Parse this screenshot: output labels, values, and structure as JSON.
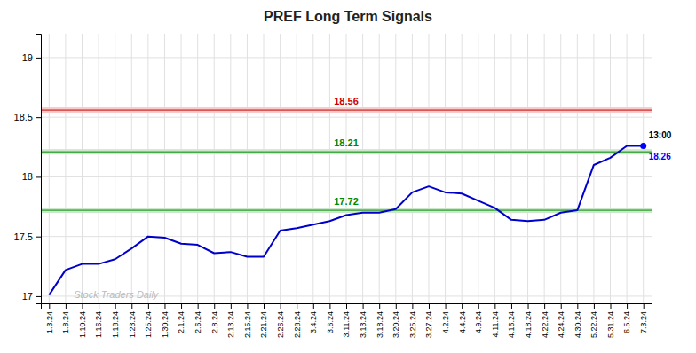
{
  "chart_data": {
    "type": "line",
    "title": "PREF Long Term Signals",
    "categories": [
      "1.3.24",
      "1.8.24",
      "1.10.24",
      "1.16.24",
      "1.18.24",
      "1.23.24",
      "1.25.24",
      "1.30.24",
      "2.1.24",
      "2.6.24",
      "2.8.24",
      "2.13.24",
      "2.15.24",
      "2.21.24",
      "2.26.24",
      "2.28.24",
      "3.4.24",
      "3.6.24",
      "3.11.24",
      "3.13.24",
      "3.18.24",
      "3.20.24",
      "3.25.24",
      "3.27.24",
      "4.2.24",
      "4.4.24",
      "4.9.24",
      "4.11.24",
      "4.16.24",
      "4.18.24",
      "4.22.24",
      "4.24.24",
      "4.30.24",
      "5.22.24",
      "5.31.24",
      "6.5.24",
      "7.3.24"
    ],
    "values": [
      17.01,
      17.22,
      17.27,
      17.27,
      17.31,
      17.4,
      17.5,
      17.49,
      17.44,
      17.43,
      17.36,
      17.37,
      17.33,
      17.33,
      17.55,
      17.57,
      17.6,
      17.63,
      17.68,
      17.7,
      17.7,
      17.73,
      17.87,
      17.92,
      17.87,
      17.86,
      17.8,
      17.74,
      17.64,
      17.63,
      17.64,
      17.7,
      17.72,
      18.1,
      18.16,
      18.26,
      18.26
    ],
    "color": "#0000cc",
    "ylim": [
      16.94,
      19.2
    ],
    "yticks": [
      17,
      17.5,
      18,
      18.5,
      19
    ],
    "grid": true,
    "reference_lines": [
      {
        "y": 18.56,
        "label": "18.56",
        "color": "#cc0000"
      },
      {
        "y": 18.21,
        "label": "18.21",
        "color": "#008800"
      },
      {
        "y": 17.72,
        "label": "17.72",
        "color": "#008800"
      }
    ],
    "annotations": [
      {
        "text": "13:00",
        "color": "#000000"
      },
      {
        "text": "18.26",
        "color": "#0000ff"
      }
    ],
    "watermark": {
      "text": "Stock Traders Daily",
      "color": "#bbbbbb"
    }
  }
}
